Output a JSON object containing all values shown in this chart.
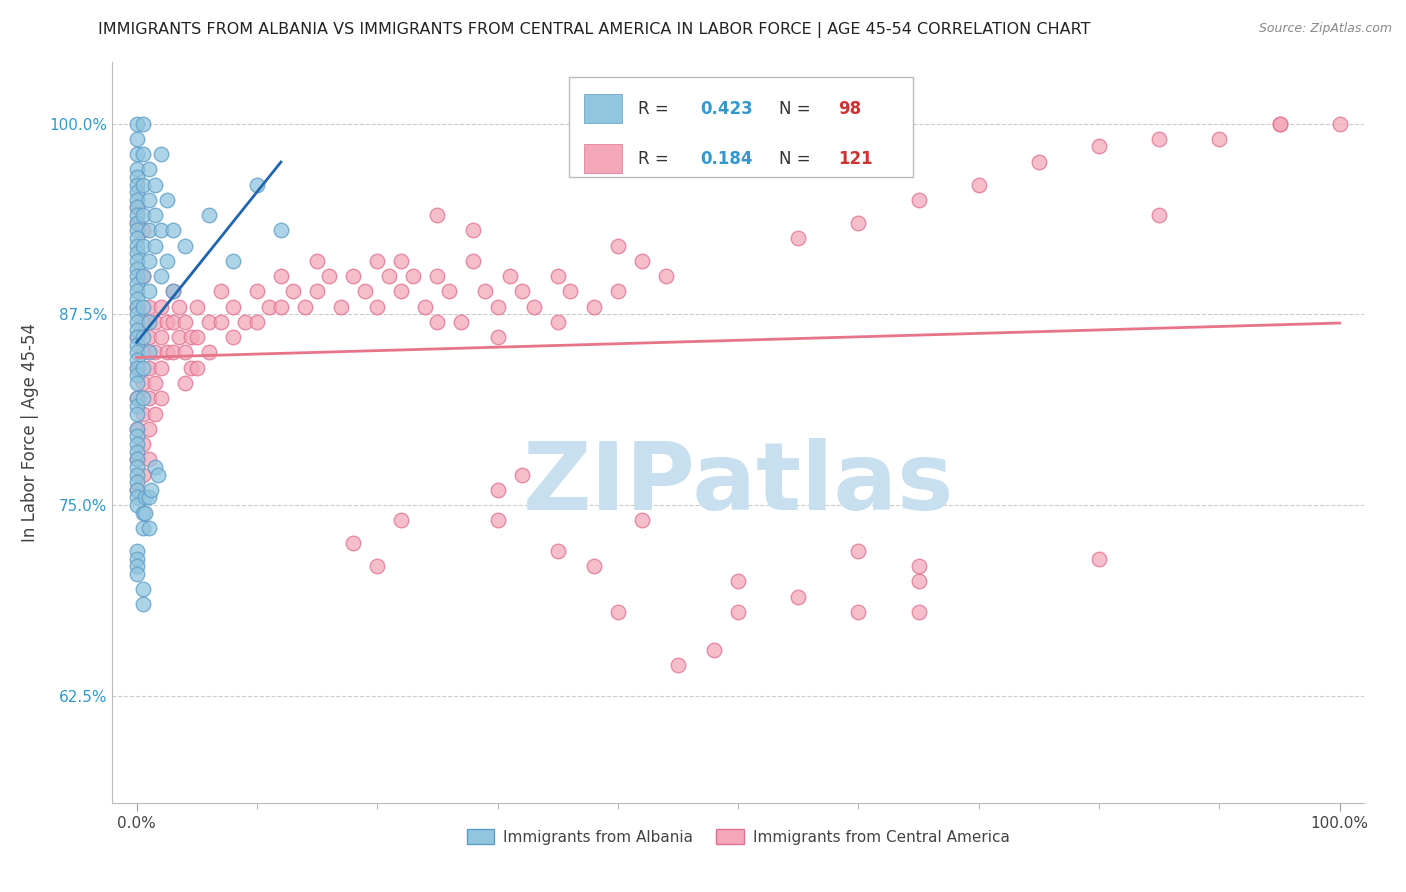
{
  "title": "IMMIGRANTS FROM ALBANIA VS IMMIGRANTS FROM CENTRAL AMERICA IN LABOR FORCE | AGE 45-54 CORRELATION CHART",
  "source": "Source: ZipAtlas.com",
  "legend_albania": "Immigrants from Albania",
  "legend_ca": "Immigrants from Central America",
  "ylabel": "In Labor Force | Age 45-54",
  "xlim": [
    -0.02,
    1.02
  ],
  "ylim": [
    0.555,
    1.04
  ],
  "x_ticks": [
    0.0,
    1.0
  ],
  "x_tick_labels": [
    "0.0%",
    "100.0%"
  ],
  "y_tick_labels": [
    "62.5%",
    "75.0%",
    "87.5%",
    "100.0%"
  ],
  "y_ticks": [
    0.625,
    0.75,
    0.875,
    1.0
  ],
  "albania_R": 0.423,
  "albania_N": 98,
  "central_america_R": 0.184,
  "central_america_N": 121,
  "albania_color": "#92c5de",
  "albania_edge_color": "#5b9dc9",
  "central_america_color": "#f4a7b9",
  "central_america_edge_color": "#e07090",
  "regression_albania_color": "#2166ac",
  "regression_central_color": "#e8748a",
  "albania_scatter": [
    [
      0.0,
      1.0
    ],
    [
      0.0,
      0.99
    ],
    [
      0.0,
      0.98
    ],
    [
      0.0,
      0.97
    ],
    [
      0.0,
      0.965
    ],
    [
      0.0,
      0.96
    ],
    [
      0.0,
      0.955
    ],
    [
      0.0,
      0.95
    ],
    [
      0.0,
      0.945
    ],
    [
      0.0,
      0.94
    ],
    [
      0.0,
      0.935
    ],
    [
      0.0,
      0.93
    ],
    [
      0.0,
      0.925
    ],
    [
      0.0,
      0.92
    ],
    [
      0.0,
      0.915
    ],
    [
      0.0,
      0.91
    ],
    [
      0.0,
      0.905
    ],
    [
      0.0,
      0.9
    ],
    [
      0.0,
      0.895
    ],
    [
      0.0,
      0.89
    ],
    [
      0.0,
      0.885
    ],
    [
      0.0,
      0.88
    ],
    [
      0.0,
      0.875
    ],
    [
      0.0,
      0.87
    ],
    [
      0.0,
      0.865
    ],
    [
      0.0,
      0.86
    ],
    [
      0.0,
      0.855
    ],
    [
      0.0,
      0.85
    ],
    [
      0.0,
      0.845
    ],
    [
      0.0,
      0.84
    ],
    [
      0.0,
      0.835
    ],
    [
      0.0,
      0.83
    ],
    [
      0.0,
      0.82
    ],
    [
      0.0,
      0.815
    ],
    [
      0.0,
      0.81
    ],
    [
      0.0,
      0.8
    ],
    [
      0.0,
      0.795
    ],
    [
      0.0,
      0.79
    ],
    [
      0.0,
      0.785
    ],
    [
      0.0,
      0.78
    ],
    [
      0.0,
      0.775
    ],
    [
      0.0,
      0.77
    ],
    [
      0.0,
      0.765
    ],
    [
      0.0,
      0.76
    ],
    [
      0.0,
      0.755
    ],
    [
      0.0,
      0.75
    ],
    [
      0.005,
      1.0
    ],
    [
      0.005,
      0.98
    ],
    [
      0.005,
      0.96
    ],
    [
      0.005,
      0.94
    ],
    [
      0.005,
      0.92
    ],
    [
      0.005,
      0.9
    ],
    [
      0.005,
      0.88
    ],
    [
      0.005,
      0.86
    ],
    [
      0.005,
      0.84
    ],
    [
      0.005,
      0.82
    ],
    [
      0.01,
      0.97
    ],
    [
      0.01,
      0.95
    ],
    [
      0.01,
      0.93
    ],
    [
      0.01,
      0.91
    ],
    [
      0.01,
      0.89
    ],
    [
      0.01,
      0.87
    ],
    [
      0.01,
      0.85
    ],
    [
      0.015,
      0.96
    ],
    [
      0.015,
      0.94
    ],
    [
      0.015,
      0.92
    ],
    [
      0.02,
      0.98
    ],
    [
      0.02,
      0.93
    ],
    [
      0.02,
      0.9
    ],
    [
      0.025,
      0.95
    ],
    [
      0.025,
      0.91
    ],
    [
      0.03,
      0.93
    ],
    [
      0.03,
      0.89
    ],
    [
      0.005,
      0.745
    ],
    [
      0.005,
      0.735
    ],
    [
      0.007,
      0.755
    ],
    [
      0.007,
      0.745
    ],
    [
      0.01,
      0.755
    ],
    [
      0.01,
      0.735
    ],
    [
      0.012,
      0.76
    ],
    [
      0.0,
      0.72
    ],
    [
      0.0,
      0.715
    ],
    [
      0.0,
      0.71
    ],
    [
      0.0,
      0.705
    ],
    [
      0.005,
      0.695
    ],
    [
      0.005,
      0.685
    ],
    [
      0.04,
      0.92
    ],
    [
      0.06,
      0.94
    ],
    [
      0.08,
      0.91
    ],
    [
      0.1,
      0.96
    ],
    [
      0.12,
      0.93
    ],
    [
      0.015,
      0.775
    ],
    [
      0.018,
      0.77
    ]
  ],
  "central_america_scatter": [
    [
      0.0,
      0.88
    ],
    [
      0.0,
      0.86
    ],
    [
      0.0,
      0.84
    ],
    [
      0.0,
      0.82
    ],
    [
      0.0,
      0.8
    ],
    [
      0.0,
      0.78
    ],
    [
      0.0,
      0.76
    ],
    [
      0.005,
      0.9
    ],
    [
      0.005,
      0.87
    ],
    [
      0.005,
      0.85
    ],
    [
      0.005,
      0.83
    ],
    [
      0.005,
      0.81
    ],
    [
      0.005,
      0.79
    ],
    [
      0.005,
      0.77
    ],
    [
      0.01,
      0.88
    ],
    [
      0.01,
      0.86
    ],
    [
      0.01,
      0.84
    ],
    [
      0.01,
      0.82
    ],
    [
      0.01,
      0.8
    ],
    [
      0.01,
      0.78
    ],
    [
      0.015,
      0.87
    ],
    [
      0.015,
      0.85
    ],
    [
      0.015,
      0.83
    ],
    [
      0.015,
      0.81
    ],
    [
      0.02,
      0.88
    ],
    [
      0.02,
      0.86
    ],
    [
      0.02,
      0.84
    ],
    [
      0.02,
      0.82
    ],
    [
      0.025,
      0.87
    ],
    [
      0.025,
      0.85
    ],
    [
      0.03,
      0.89
    ],
    [
      0.03,
      0.87
    ],
    [
      0.03,
      0.85
    ],
    [
      0.035,
      0.88
    ],
    [
      0.035,
      0.86
    ],
    [
      0.04,
      0.87
    ],
    [
      0.04,
      0.85
    ],
    [
      0.04,
      0.83
    ],
    [
      0.045,
      0.86
    ],
    [
      0.045,
      0.84
    ],
    [
      0.05,
      0.88
    ],
    [
      0.05,
      0.86
    ],
    [
      0.05,
      0.84
    ],
    [
      0.06,
      0.87
    ],
    [
      0.06,
      0.85
    ],
    [
      0.07,
      0.89
    ],
    [
      0.07,
      0.87
    ],
    [
      0.08,
      0.88
    ],
    [
      0.08,
      0.86
    ],
    [
      0.09,
      0.87
    ],
    [
      0.1,
      0.89
    ],
    [
      0.1,
      0.87
    ],
    [
      0.11,
      0.88
    ],
    [
      0.12,
      0.9
    ],
    [
      0.12,
      0.88
    ],
    [
      0.13,
      0.89
    ],
    [
      0.14,
      0.88
    ],
    [
      0.15,
      0.91
    ],
    [
      0.15,
      0.89
    ],
    [
      0.16,
      0.9
    ],
    [
      0.17,
      0.88
    ],
    [
      0.18,
      0.9
    ],
    [
      0.19,
      0.89
    ],
    [
      0.2,
      0.91
    ],
    [
      0.2,
      0.88
    ],
    [
      0.21,
      0.9
    ],
    [
      0.22,
      0.91
    ],
    [
      0.22,
      0.89
    ],
    [
      0.23,
      0.9
    ],
    [
      0.24,
      0.88
    ],
    [
      0.25,
      0.9
    ],
    [
      0.25,
      0.87
    ],
    [
      0.26,
      0.89
    ],
    [
      0.27,
      0.87
    ],
    [
      0.28,
      0.91
    ],
    [
      0.29,
      0.89
    ],
    [
      0.3,
      0.88
    ],
    [
      0.3,
      0.86
    ],
    [
      0.31,
      0.9
    ],
    [
      0.32,
      0.89
    ],
    [
      0.33,
      0.88
    ],
    [
      0.35,
      0.9
    ],
    [
      0.35,
      0.87
    ],
    [
      0.36,
      0.89
    ],
    [
      0.38,
      0.88
    ],
    [
      0.4,
      0.92
    ],
    [
      0.4,
      0.89
    ],
    [
      0.42,
      0.91
    ],
    [
      0.44,
      0.9
    ],
    [
      0.0,
      0.935
    ],
    [
      0.0,
      0.945
    ],
    [
      0.005,
      0.93
    ],
    [
      0.25,
      0.94
    ],
    [
      0.28,
      0.93
    ],
    [
      0.3,
      0.76
    ],
    [
      0.3,
      0.74
    ],
    [
      0.32,
      0.77
    ],
    [
      0.18,
      0.725
    ],
    [
      0.2,
      0.71
    ],
    [
      0.22,
      0.74
    ],
    [
      0.35,
      0.72
    ],
    [
      0.38,
      0.71
    ],
    [
      0.42,
      0.74
    ],
    [
      0.4,
      0.68
    ],
    [
      0.5,
      0.7
    ],
    [
      0.5,
      0.68
    ],
    [
      0.55,
      0.69
    ],
    [
      0.65,
      0.71
    ],
    [
      0.45,
      0.645
    ],
    [
      0.48,
      0.655
    ],
    [
      0.6,
      0.72
    ],
    [
      0.6,
      0.68
    ],
    [
      0.65,
      0.7
    ],
    [
      0.65,
      0.68
    ],
    [
      0.8,
      0.715
    ],
    [
      0.85,
      0.94
    ],
    [
      0.9,
      0.99
    ],
    [
      0.95,
      1.0
    ],
    [
      1.0,
      1.0
    ],
    [
      0.55,
      0.925
    ],
    [
      0.6,
      0.935
    ],
    [
      0.65,
      0.95
    ],
    [
      0.7,
      0.96
    ],
    [
      0.75,
      0.975
    ],
    [
      0.8,
      0.985
    ],
    [
      0.85,
      0.99
    ],
    [
      0.95,
      1.0
    ]
  ],
  "watermark_text": "ZIPatlas",
  "watermark_color": "#c8dff0",
  "background_color": "#ffffff"
}
